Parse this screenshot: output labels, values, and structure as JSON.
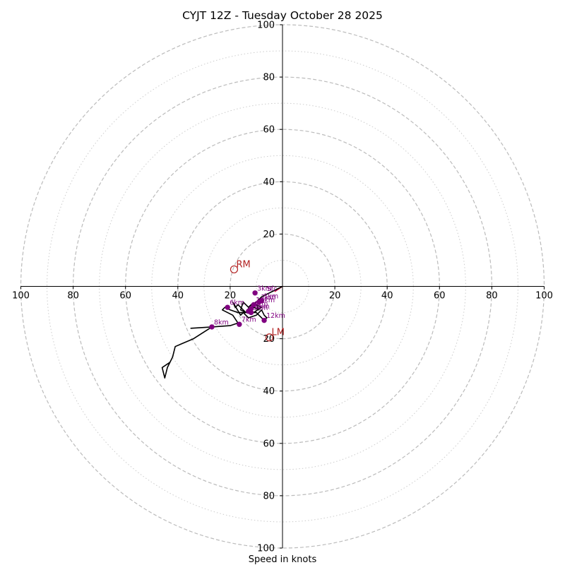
{
  "chart_data": {
    "type": "hodograph",
    "title": "CYJT 12Z - Tuesday October 28 2025",
    "xlabel": "Speed in knots",
    "range": [
      -100,
      100
    ],
    "ring_major": [
      20,
      40,
      60,
      80,
      100
    ],
    "ring_minor": [
      10,
      30,
      50,
      70,
      90
    ],
    "tick_values": [
      20,
      40,
      60,
      80,
      100
    ],
    "tick_labels": [
      "20",
      "40",
      "60",
      "80",
      "100"
    ],
    "colors": {
      "background": "#ffffff",
      "axis": "#000000",
      "grid_major": "#bbbbbb",
      "grid_minor": "#cccccc",
      "trace": "#000000",
      "height_marker": "#800080",
      "height_label": "#800080",
      "storm_motion": "#b22222",
      "shear_vector": "#dc143c",
      "title": "#000000"
    },
    "trace": {
      "name": "wind profile",
      "points": [
        [
          0,
          0
        ],
        [
          -4,
          -2
        ],
        [
          -6,
          -3
        ],
        [
          -8,
          -4
        ],
        [
          -9,
          -5
        ],
        [
          -10,
          -6
        ],
        [
          -12,
          -7
        ],
        [
          -13,
          -8
        ],
        [
          -15,
          -6
        ],
        [
          -16,
          -9
        ],
        [
          -14,
          -10
        ],
        [
          -12,
          -7
        ],
        [
          -11,
          -8
        ],
        [
          -9,
          -9
        ],
        [
          -10,
          -7
        ],
        [
          -8,
          -8
        ],
        [
          -11,
          -10
        ],
        [
          -12,
          -9
        ],
        [
          -14,
          -10
        ],
        [
          -16,
          -8
        ],
        [
          -17,
          -7
        ],
        [
          -18,
          -8
        ],
        [
          -19,
          -6
        ],
        [
          -16,
          -11
        ],
        [
          -15,
          -10
        ],
        [
          -13,
          -12
        ],
        [
          -10,
          -11
        ],
        [
          -8,
          -9
        ],
        [
          -7,
          -11
        ],
        [
          -6,
          -12
        ],
        [
          -7,
          -13
        ],
        [
          -10,
          -10
        ],
        [
          -15,
          -10
        ],
        [
          -17,
          -10
        ],
        [
          -20,
          -9
        ],
        [
          -22,
          -8
        ],
        [
          -23,
          -9
        ],
        [
          -19,
          -11
        ],
        [
          -17,
          -14
        ],
        [
          -20,
          -15
        ],
        [
          -27,
          -15.5
        ],
        [
          -35,
          -16
        ],
        [
          -27,
          -15.5
        ],
        [
          -34,
          -20
        ],
        [
          -41,
          -23
        ],
        [
          -42,
          -27
        ],
        [
          -44,
          -31
        ],
        [
          -45,
          -35
        ],
        [
          -46,
          -31
        ],
        [
          -43,
          -29
        ],
        [
          -42,
          -27
        ]
      ]
    },
    "height_markers": [
      {
        "label": "3km",
        "u": -10.5,
        "v": -2.5
      },
      {
        "label": "1km",
        "u": -8,
        "v": -5.5
      },
      {
        "label": "2km",
        "u": -9,
        "v": -6
      },
      {
        "label": "10km",
        "u": -11,
        "v": -7
      },
      {
        "label": "4km",
        "u": -12,
        "v": -8.5
      },
      {
        "label": "5km",
        "u": -12,
        "v": -10
      },
      {
        "label": "11km",
        "u": -13,
        "v": -9.5
      },
      {
        "label": "6km",
        "u": -21,
        "v": -8
      },
      {
        "label": "8km",
        "u": -27,
        "v": -15.5
      },
      {
        "label": "7km",
        "u": -16.5,
        "v": -14.5
      },
      {
        "label": "12km",
        "u": -7,
        "v": -13
      }
    ],
    "surface_label": {
      "label": "Sfc",
      "u": -6,
      "v": -1
    },
    "storm_motion": [
      {
        "label": "RM",
        "u": -18.5,
        "v": 6.5
      },
      {
        "label": "LM",
        "u": -5,
        "v": -19.5
      }
    ],
    "shear_vector": {
      "u0": -3,
      "v0": -2,
      "u1": 0,
      "v1": 0
    }
  }
}
